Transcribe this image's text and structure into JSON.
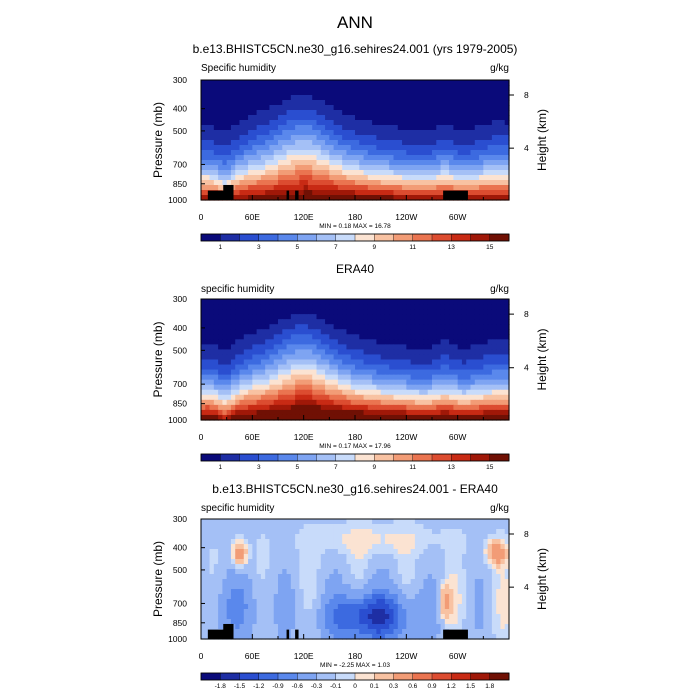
{
  "figure": {
    "title": "ANN"
  },
  "chart_data": [
    {
      "type": "heatmap",
      "title": "b.e13.BHISTC5CN.ne30_g16.sehires24.001 (yrs 1979-2005)",
      "left_label": "Specific humidity",
      "units": "g/kg",
      "ylabel": "Pressure (mb)",
      "ylabel_right": "Height (km)",
      "x_ticks": [
        "0",
        "60E",
        "120E",
        "180",
        "120W",
        "60W"
      ],
      "y_ticks": [
        "300",
        "400",
        "500",
        "700",
        "850",
        "1000"
      ],
      "y_right_ticks": [
        "8",
        "4"
      ],
      "min_max_text": "MIN =   0.18  MAX =  16.78",
      "colorbar_labels": [
        "1",
        "3",
        "5",
        "7",
        "9",
        "11",
        "13",
        "15"
      ],
      "levels": [
        0,
        1,
        2,
        3,
        4,
        5,
        6,
        7,
        8,
        9,
        10,
        11,
        12,
        13,
        14,
        15,
        16
      ],
      "min": 0.18,
      "max": 16.78
    },
    {
      "type": "heatmap",
      "title": "ERA40",
      "left_label": "specific humidity",
      "units": "g/kg",
      "ylabel": "Pressure (mb)",
      "ylabel_right": "Height (km)",
      "x_ticks": [
        "0",
        "60E",
        "120E",
        "180",
        "120W",
        "60W"
      ],
      "y_ticks": [
        "300",
        "400",
        "500",
        "700",
        "850",
        "1000"
      ],
      "y_right_ticks": [
        "8",
        "4"
      ],
      "min_max_text": "MIN =   0.17  MAX =  17.96",
      "colorbar_labels": [
        "1",
        "3",
        "5",
        "7",
        "9",
        "11",
        "13",
        "15"
      ],
      "levels": [
        0,
        1,
        2,
        3,
        4,
        5,
        6,
        7,
        8,
        9,
        10,
        11,
        12,
        13,
        14,
        15,
        16
      ],
      "min": 0.17,
      "max": 17.96
    },
    {
      "type": "heatmap",
      "title": "b.e13.BHISTC5CN.ne30_g16.sehires24.001 - ERA40",
      "left_label": "specific humidity",
      "units": "g/kg",
      "ylabel": "Pressure (mb)",
      "ylabel_right": "Height (km)",
      "x_ticks": [
        "0",
        "60E",
        "120E",
        "180",
        "120W",
        "60W"
      ],
      "y_ticks": [
        "300",
        "400",
        "500",
        "700",
        "850",
        "1000"
      ],
      "y_right_ticks": [
        "8",
        "4"
      ],
      "min_max_text": "MIN =  -2.25  MAX =   1.03",
      "colorbar_labels": [
        "-1.8",
        "-1.5",
        "-1.2",
        "-0.9",
        "-0.6",
        "-0.3",
        "-0.1",
        "0",
        "0.1",
        "0.3",
        "0.6",
        "0.9",
        "1.2",
        "1.5",
        "1.8"
      ],
      "levels": [
        -2.1,
        -1.8,
        -1.5,
        -1.2,
        -0.9,
        -0.6,
        -0.3,
        -0.1,
        0,
        0.1,
        0.3,
        0.6,
        0.9,
        1.2,
        1.5,
        1.8,
        2.1
      ],
      "min": -2.25,
      "max": 1.03
    }
  ],
  "colors": {
    "palette": [
      "#0a0a7a",
      "#1e2ea4",
      "#2a4ed0",
      "#3c6ae0",
      "#5a88ec",
      "#7ea4f2",
      "#a4c0f6",
      "#c8dbfa",
      "#fbe3d2",
      "#f8c2a2",
      "#f29c76",
      "#ea7450",
      "#dc4c30",
      "#c82a14",
      "#a01808",
      "#701004"
    ],
    "terrain": "#000000"
  }
}
